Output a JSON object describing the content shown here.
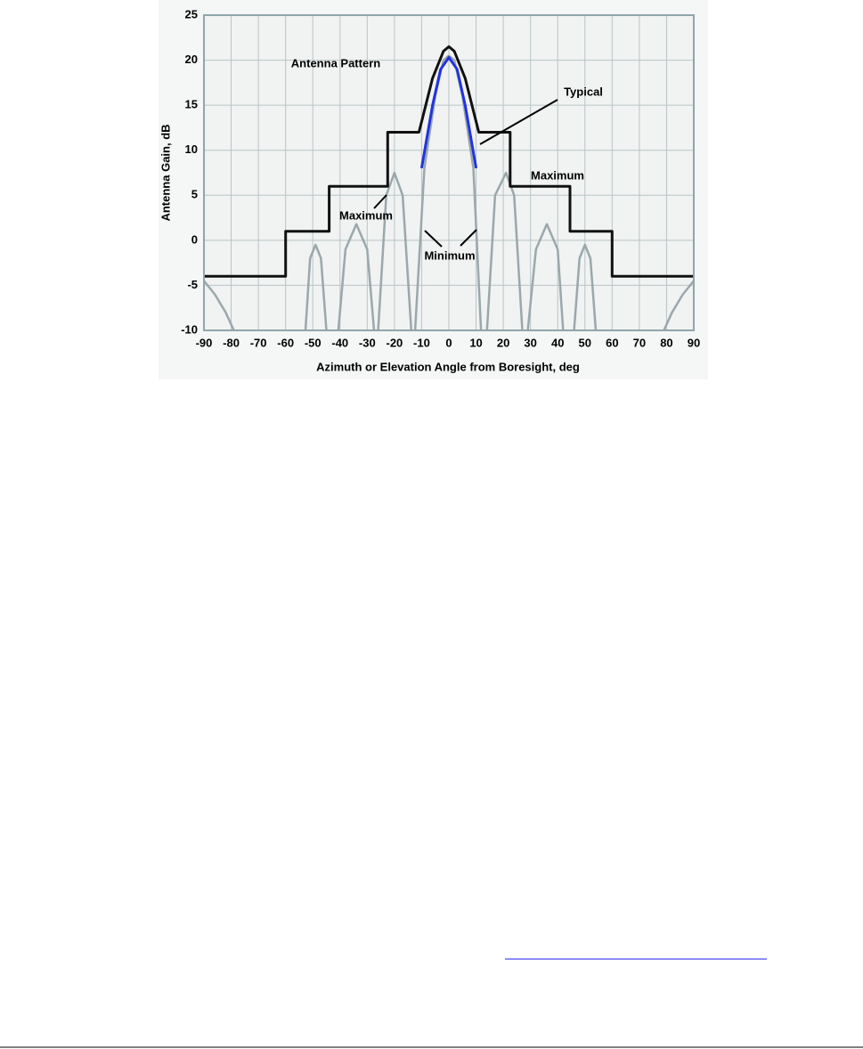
{
  "chart_data": {
    "type": "line",
    "xlabel": "Azimuth or Elevation Angle from Boresight, deg",
    "ylabel": "Antenna Gain, dB",
    "xlim": [
      -90,
      95
    ],
    "ylim": [
      -10,
      25
    ],
    "xticks": [
      -90,
      -80,
      -70,
      -60,
      -50,
      -40,
      -30,
      -20,
      -10,
      0,
      10,
      20,
      30,
      40,
      50,
      60,
      70,
      80,
      90
    ],
    "yticks": [
      -10,
      -5,
      0,
      5,
      10,
      15,
      20,
      25
    ],
    "grid": true,
    "series": [
      {
        "color": "#9aa8ab",
        "x": [
          -90,
          -86,
          -82,
          -79,
          -70,
          -52.7,
          -51,
          -49,
          -47,
          -45,
          -43,
          -40.6,
          -38,
          -34,
          -30,
          -27.5,
          -27,
          -26,
          -23,
          -20,
          -17,
          -13.8,
          -13,
          -12.4,
          -9,
          -5,
          -2,
          0,
          2,
          5,
          9,
          11.8,
          13,
          14,
          17,
          21,
          24,
          27,
          28,
          29,
          32,
          36,
          40,
          42,
          43,
          46,
          48,
          50,
          52,
          54,
          70,
          79,
          82,
          86,
          90
        ],
        "values": [
          -4.5,
          -6,
          -8,
          -10,
          null,
          -10,
          -2,
          -0.5,
          -2,
          -10,
          null,
          -10,
          -1,
          1.8,
          -1,
          -10,
          null,
          -10,
          5,
          7.5,
          5,
          -10,
          null,
          -10,
          8,
          16,
          20,
          20.5,
          20,
          16,
          8,
          -10,
          null,
          -10,
          5,
          7.5,
          5,
          -10,
          null,
          -10,
          -1,
          1.8,
          -1,
          -10,
          null,
          -10,
          -2,
          -0.5,
          -2,
          -10,
          null,
          -10,
          -8,
          -6,
          -4.5
        ]
      },
      {
        "color": "#111111",
        "x": [
          -90,
          -60,
          -60,
          -44,
          -44,
          -22.5,
          -22.5,
          -11,
          -6,
          -2,
          0,
          2,
          6,
          11,
          22.5,
          22.5,
          44.5,
          44.5,
          60,
          60,
          90
        ],
        "values": [
          -4,
          -4,
          1,
          1,
          6,
          6,
          12,
          12,
          18,
          21,
          21.5,
          21,
          18,
          12,
          12,
          6,
          6,
          1,
          1,
          -4,
          -4
        ]
      },
      {
        "color": "#2233dd",
        "x": [
          -10,
          -6,
          -3,
          0,
          3,
          6,
          10
        ],
        "values": [
          8,
          15,
          19,
          20.3,
          19,
          15,
          8
        ]
      }
    ],
    "annotations": [
      "Antenna Pattern",
      "Typical",
      "Maximum",
      "Maximum",
      "Minimum"
    ]
  }
}
